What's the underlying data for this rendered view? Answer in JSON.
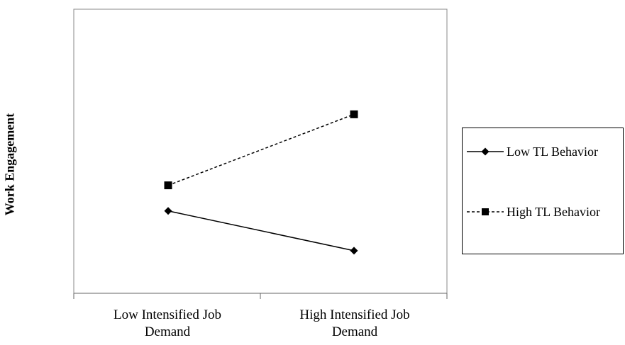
{
  "chart_data": {
    "type": "line",
    "ylabel": "Work Engagement",
    "xlabel": "",
    "categories": [
      {
        "line1": "Low Intensified Job",
        "line2": "Demand"
      },
      {
        "line1": "High Intensified Job",
        "line2": "Demand"
      }
    ],
    "ylim": [
      0,
      100
    ],
    "grid": false,
    "legend_position": "right",
    "series": [
      {
        "name": "Low TL Behavior",
        "values": [
          29,
          15
        ],
        "marker": "diamond",
        "dash": "solid",
        "color": "#000000"
      },
      {
        "name": "High TL Behavior",
        "values": [
          38,
          63
        ],
        "marker": "square",
        "dash": "dashed",
        "color": "#000000"
      }
    ]
  }
}
